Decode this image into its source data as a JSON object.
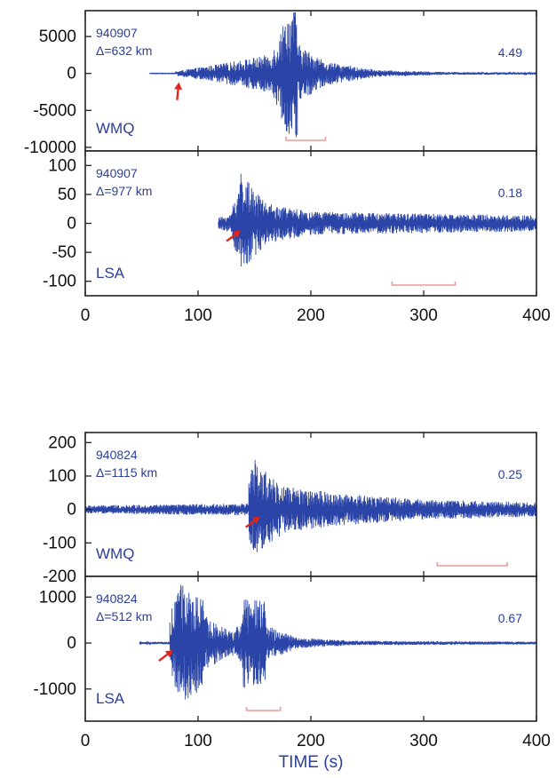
{
  "colors": {
    "trace": "#2a44a8",
    "text": "#2b3e9a",
    "arrow": "#e0241c",
    "window": "#ee9a9a",
    "axis": "#222222"
  },
  "xlabel": "TIME  (s)",
  "xlim": [
    0,
    400
  ],
  "xticks": [
    0,
    100,
    200,
    300,
    400
  ],
  "panels": [
    {
      "event": "940907",
      "distance": "Δ=632 km",
      "station": "WMQ",
      "amplitude": "4.49",
      "ylim": [
        -10500,
        8500
      ],
      "yticks": [
        5000,
        0,
        -5000,
        -10000
      ],
      "arrow_time": 83,
      "arrow_direction": "up",
      "window": [
        178,
        213
      ],
      "series": [
        {
          "t": [
            57,
            80
          ],
          "amp": [
            40,
            40
          ]
        },
        {
          "t": [
            80,
            120
          ],
          "amp": [
            300,
            1300
          ]
        },
        {
          "t": [
            120,
            165
          ],
          "amp": [
            1300,
            2600
          ]
        },
        {
          "t": [
            165,
            178
          ],
          "amp": [
            2600,
            7800
          ]
        },
        {
          "t": [
            178,
            188
          ],
          "amp": [
            7800,
            9300
          ]
        },
        {
          "t": [
            188,
            215
          ],
          "amp": [
            4000,
            1500
          ]
        },
        {
          "t": [
            215,
            260
          ],
          "amp": [
            1500,
            450
          ]
        },
        {
          "t": [
            260,
            320
          ],
          "amp": [
            450,
            200
          ]
        },
        {
          "t": [
            320,
            400
          ],
          "amp": [
            200,
            120
          ]
        }
      ]
    },
    {
      "event": "940907",
      "distance": "Δ=977 km",
      "station": "LSA",
      "amplitude": "0.18",
      "ylim": [
        -125,
        125
      ],
      "yticks": [
        100,
        50,
        0,
        -50,
        -100
      ],
      "arrow_time": 130,
      "arrow_direction": "upright",
      "window": [
        272,
        328
      ],
      "series": [
        {
          "t": [
            118,
            130
          ],
          "amp": [
            10,
            16
          ]
        },
        {
          "t": [
            130,
            138
          ],
          "amp": [
            30,
            80
          ]
        },
        {
          "t": [
            138,
            145
          ],
          "amp": [
            100,
            70
          ]
        },
        {
          "t": [
            145,
            160
          ],
          "amp": [
            70,
            35
          ]
        },
        {
          "t": [
            160,
            200
          ],
          "amp": [
            35,
            20
          ]
        },
        {
          "t": [
            200,
            400
          ],
          "amp": [
            20,
            14
          ]
        }
      ]
    },
    {
      "event": "940824",
      "distance": "Δ=1115 km",
      "station": "WMQ",
      "amplitude": "0.25",
      "ylim": [
        -200,
        230
      ],
      "yticks": [
        200,
        100,
        0,
        -100,
        -200
      ],
      "arrow_time": 147,
      "arrow_direction": "upright",
      "window": [
        312,
        374
      ],
      "series": [
        {
          "t": [
            0,
            145
          ],
          "amp": [
            12,
            18
          ]
        },
        {
          "t": [
            145,
            152
          ],
          "amp": [
            80,
            200
          ]
        },
        {
          "t": [
            152,
            175
          ],
          "amp": [
            130,
            80
          ]
        },
        {
          "t": [
            175,
            220
          ],
          "amp": [
            70,
            50
          ]
        },
        {
          "t": [
            220,
            300
          ],
          "amp": [
            50,
            30
          ]
        },
        {
          "t": [
            300,
            400
          ],
          "amp": [
            30,
            22
          ]
        }
      ]
    },
    {
      "event": "940824",
      "distance": "Δ=512 km",
      "station": "LSA",
      "amplitude": "0.67",
      "ylim": [
        -1700,
        1450
      ],
      "yticks": [
        1000,
        0,
        -1000
      ],
      "arrow_time": 70,
      "arrow_direction": "upright",
      "window": [
        143,
        173
      ],
      "series": [
        {
          "t": [
            48,
            75
          ],
          "amp": [
            15,
            30
          ]
        },
        {
          "t": [
            75,
            85
          ],
          "amp": [
            600,
            1400
          ]
        },
        {
          "t": [
            85,
            105
          ],
          "amp": [
            1300,
            1000
          ]
        },
        {
          "t": [
            105,
            130
          ],
          "amp": [
            600,
            250
          ]
        },
        {
          "t": [
            130,
            140
          ],
          "amp": [
            250,
            550
          ]
        },
        {
          "t": [
            140,
            160
          ],
          "amp": [
            1000,
            900
          ]
        },
        {
          "t": [
            160,
            185
          ],
          "amp": [
            400,
            150
          ]
        },
        {
          "t": [
            185,
            230
          ],
          "amp": [
            120,
            60
          ]
        },
        {
          "t": [
            230,
            400
          ],
          "amp": [
            50,
            30
          ]
        }
      ]
    }
  ]
}
